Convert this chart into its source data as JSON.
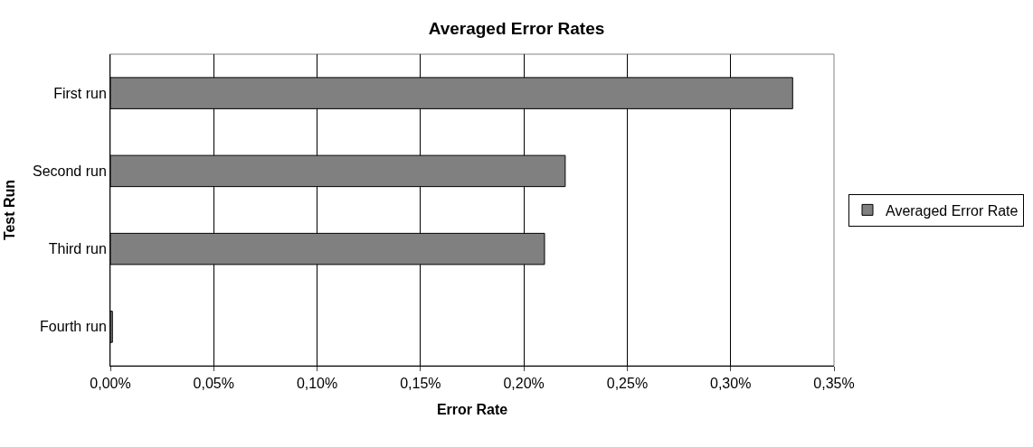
{
  "chart_data": {
    "type": "bar",
    "orientation": "horizontal",
    "title": "Averaged Error Rates",
    "xlabel": "Error Rate",
    "ylabel": "Test Run",
    "categories": [
      "First run",
      "Second run",
      "Third run",
      "Fourth run"
    ],
    "series": [
      {
        "name": "Averaged Error Rate",
        "color": "#808080",
        "values": [
          0.33,
          0.22,
          0.21,
          0.001
        ]
      }
    ],
    "xlim": [
      0,
      0.35
    ],
    "xticks": [
      {
        "value": 0,
        "label": "0,00%"
      },
      {
        "value": 0.05,
        "label": "0,05%"
      },
      {
        "value": 0.1,
        "label": "0,10%"
      },
      {
        "value": 0.15,
        "label": "0,15%"
      },
      {
        "value": 0.2,
        "label": "0,20%"
      },
      {
        "value": 0.25,
        "label": "0,25%"
      },
      {
        "value": 0.3,
        "label": "0,30%"
      },
      {
        "value": 0.35,
        "label": "0,35%"
      }
    ],
    "grid": "x",
    "legend": "right"
  }
}
